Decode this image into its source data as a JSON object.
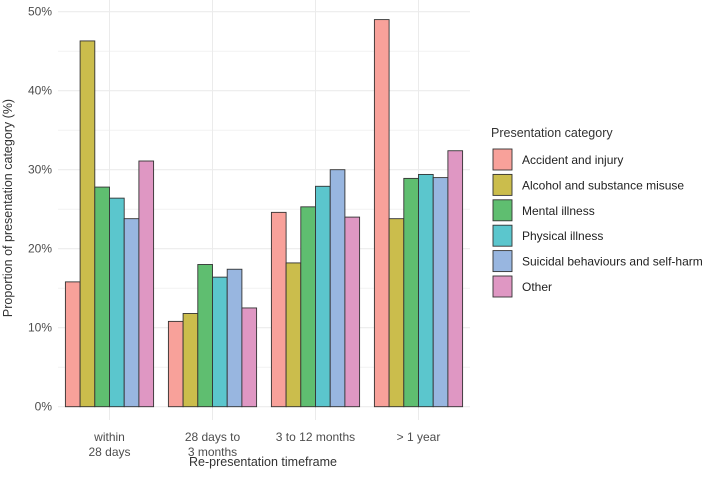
{
  "chart_data": {
    "type": "bar",
    "title": "",
    "xlabel": "Re-presentation timeframe",
    "ylabel": "Proportion of presentation category (%)",
    "ylim": [
      0,
      50
    ],
    "yticks": [
      "0%",
      "10%",
      "20%",
      "30%",
      "40%",
      "50%"
    ],
    "ytick_values": [
      0,
      10,
      20,
      30,
      40,
      50
    ],
    "grid": true,
    "categories": [
      [
        "within",
        "28 days"
      ],
      [
        "28 days to",
        "3 months"
      ],
      [
        "3 to 12 months"
      ],
      [
        "> 1 year"
      ]
    ],
    "legend": {
      "title": "Presentation category",
      "placement": "right"
    },
    "series": [
      {
        "name": "Accident and injury",
        "color": "#f8a19a",
        "values": [
          15.8,
          10.8,
          24.6,
          49.0
        ]
      },
      {
        "name": "Alcohol and substance misuse",
        "color": "#cbbd4c",
        "values": [
          46.3,
          11.8,
          18.2,
          23.8
        ]
      },
      {
        "name": "Mental illness",
        "color": "#5fbe70",
        "values": [
          27.8,
          18.0,
          25.3,
          28.9
        ]
      },
      {
        "name": "Physical illness",
        "color": "#5bc6cd",
        "values": [
          26.4,
          16.4,
          27.9,
          29.4
        ]
      },
      {
        "name": "Suicidal behaviours and self-harm",
        "color": "#98b6e0",
        "values": [
          23.8,
          17.4,
          30.0,
          29.0
        ]
      },
      {
        "name": "Other",
        "color": "#df97c3",
        "values": [
          31.1,
          12.5,
          24.0,
          32.4
        ]
      }
    ]
  }
}
